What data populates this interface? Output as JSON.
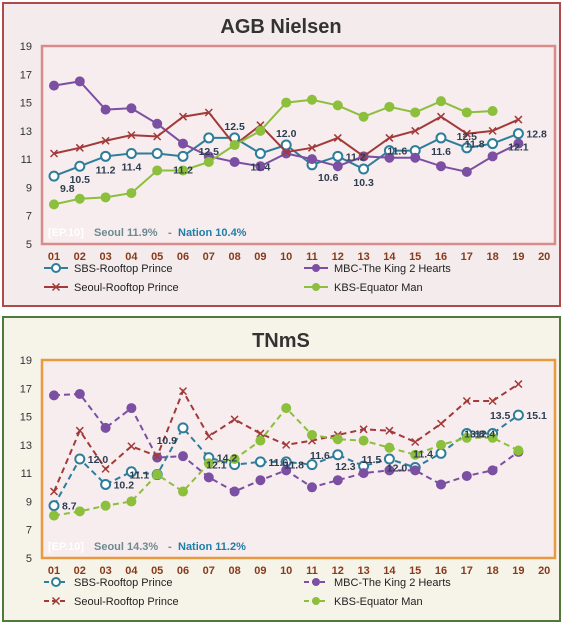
{
  "colors": {
    "sbs": "#2e7d9a",
    "mbc": "#7b4fa2",
    "seoul": "#a23a3a",
    "kbs": "#8bbf3c",
    "agb_frame": "#d98b8b",
    "tnms_frame": "#e89a40",
    "episode_tag": "#ffffff",
    "seoul_text": "#6d8a92",
    "nation_text": "#1f7fa8"
  },
  "chart_data": [
    {
      "type": "line",
      "title": "AGB Nielsen",
      "x": [
        "01",
        "02",
        "03",
        "04",
        "05",
        "06",
        "07",
        "08",
        "09",
        "10",
        "11",
        "12",
        "13",
        "14",
        "15",
        "16",
        "17",
        "18",
        "19",
        "20"
      ],
      "ylim": [
        5,
        19
      ],
      "yticks": [
        5,
        7,
        9,
        11,
        13,
        15,
        17,
        19
      ],
      "grid": false,
      "line_style": "solid",
      "legend_position": "bottom",
      "footer": {
        "episode": "[EP.10]",
        "seoul": "Seoul 11.9%",
        "separator": "-",
        "nation": "Nation 10.4%"
      },
      "series": [
        {
          "name": "SBS-Rooftop Prince",
          "key": "sbs",
          "marker": "circle-open",
          "values": [
            9.8,
            10.5,
            11.2,
            11.4,
            11.4,
            11.2,
            12.5,
            12.5,
            11.4,
            12.0,
            10.6,
            11.2,
            10.3,
            11.6,
            11.6,
            12.5,
            11.8,
            12.1,
            12.8,
            null
          ]
        },
        {
          "name": "MBC-The King 2 Hearts",
          "key": "mbc",
          "marker": "circle",
          "values": [
            16.2,
            16.5,
            14.5,
            14.6,
            13.5,
            12.1,
            11.2,
            10.8,
            10.5,
            11.4,
            11.0,
            10.5,
            11.2,
            11.1,
            11.1,
            10.5,
            10.1,
            11.2,
            12.1,
            null
          ]
        },
        {
          "name": "Seoul-Rooftop Prince",
          "key": "seoul",
          "marker": "x",
          "values": [
            11.4,
            11.8,
            12.3,
            12.7,
            12.6,
            14.0,
            14.3,
            12.0,
            13.4,
            11.5,
            11.8,
            12.5,
            11.2,
            12.5,
            13.0,
            14.0,
            12.8,
            13.0,
            13.8,
            null
          ]
        },
        {
          "name": "KBS-Equator Man",
          "key": "kbs",
          "marker": "circle",
          "values": [
            7.8,
            8.2,
            8.3,
            8.6,
            10.2,
            10.2,
            10.8,
            12.0,
            13.0,
            15.0,
            15.2,
            14.8,
            14.0,
            14.7,
            14.3,
            15.1,
            14.3,
            14.4,
            null,
            null
          ]
        }
      ],
      "data_labels": [
        {
          "series": "sbs",
          "index": 0,
          "text": "9.8",
          "pos": "below-right"
        },
        {
          "series": "sbs",
          "index": 1,
          "text": "10.5",
          "pos": "below"
        },
        {
          "series": "sbs",
          "index": 2,
          "text": "11.2",
          "pos": "below"
        },
        {
          "series": "sbs",
          "index": 3,
          "text": "11.4",
          "pos": "below"
        },
        {
          "series": "sbs",
          "index": 5,
          "text": "11.2",
          "pos": "below"
        },
        {
          "series": "sbs",
          "index": 6,
          "text": "12.5",
          "pos": "below"
        },
        {
          "series": "sbs",
          "index": 7,
          "text": "12.5",
          "pos": "above"
        },
        {
          "series": "sbs",
          "index": 8,
          "text": "11.4",
          "pos": "below"
        },
        {
          "series": "sbs",
          "index": 9,
          "text": "12.0",
          "pos": "above"
        },
        {
          "series": "sbs",
          "index": 10,
          "text": "10.6",
          "pos": "below-right"
        },
        {
          "series": "sbs",
          "index": 11,
          "text": "11.2",
          "pos": "right"
        },
        {
          "series": "sbs",
          "index": 12,
          "text": "10.3",
          "pos": "below"
        },
        {
          "series": "sbs",
          "index": 14,
          "text": "11.6",
          "pos": "left"
        },
        {
          "series": "sbs",
          "index": 15,
          "text": "11.6",
          "pos": "below"
        },
        {
          "series": "sbs",
          "index": 16,
          "text": "12.5",
          "pos": "above"
        },
        {
          "series": "sbs",
          "index": 17,
          "text": "11.8",
          "pos": "left"
        },
        {
          "series": "sbs",
          "index": 18,
          "text": "12.1",
          "pos": "below"
        },
        {
          "series": "sbs",
          "index": 18,
          "text": "12.8",
          "pos": "right"
        }
      ]
    },
    {
      "type": "line",
      "title": "TNmS",
      "x": [
        "01",
        "02",
        "03",
        "04",
        "05",
        "06",
        "07",
        "08",
        "09",
        "10",
        "11",
        "12",
        "13",
        "14",
        "15",
        "16",
        "17",
        "18",
        "19",
        "20"
      ],
      "ylim": [
        5,
        19
      ],
      "yticks": [
        5,
        7,
        9,
        11,
        13,
        15,
        17,
        19
      ],
      "grid": false,
      "line_style": "dashed",
      "legend_position": "bottom",
      "footer": {
        "episode": "[EP.10]",
        "seoul": "Seoul 14.3%",
        "separator": "-",
        "nation": "Nation 11.2%"
      },
      "series": [
        {
          "name": "SBS-Rooftop Prince",
          "key": "sbs",
          "marker": "circle-open",
          "values": [
            8.7,
            12.0,
            10.2,
            11.1,
            10.9,
            14.2,
            12.1,
            11.6,
            11.8,
            11.8,
            11.6,
            12.3,
            11.5,
            12.0,
            11.4,
            12.4,
            13.8,
            13.8,
            15.1,
            null
          ]
        },
        {
          "name": "MBC-The King 2 Hearts",
          "key": "mbc",
          "marker": "circle",
          "values": [
            16.5,
            16.6,
            14.2,
            15.6,
            12.1,
            12.2,
            10.7,
            9.7,
            10.5,
            11.2,
            10.0,
            10.5,
            11.0,
            11.2,
            11.2,
            10.2,
            10.8,
            11.2,
            12.5,
            null
          ]
        },
        {
          "name": "Seoul-Rooftop Prince",
          "key": "seoul",
          "marker": "x",
          "values": [
            9.7,
            14.0,
            11.3,
            12.9,
            12.2,
            16.8,
            13.6,
            14.8,
            13.8,
            13.0,
            13.3,
            13.7,
            14.1,
            14.0,
            13.2,
            14.5,
            16.1,
            16.1,
            17.3,
            null
          ]
        },
        {
          "name": "KBS-Equator Man",
          "key": "kbs",
          "marker": "circle",
          "values": [
            8.0,
            8.3,
            8.7,
            9.0,
            10.9,
            9.7,
            11.7,
            12.0,
            13.3,
            15.6,
            13.7,
            13.4,
            13.3,
            12.8,
            12.3,
            13.0,
            13.5,
            13.5,
            12.6,
            null
          ]
        }
      ],
      "data_labels": [
        {
          "series": "sbs",
          "index": 0,
          "text": "8.7",
          "pos": "right"
        },
        {
          "series": "sbs",
          "index": 1,
          "text": "12.0",
          "pos": "right"
        },
        {
          "series": "sbs",
          "index": 2,
          "text": "10.2",
          "pos": "right"
        },
        {
          "series": "sbs",
          "index": 4,
          "text": "11.1",
          "pos": "left"
        },
        {
          "series": "sbs",
          "index": 5,
          "text": "10.9",
          "pos": "below-left"
        },
        {
          "series": "sbs",
          "index": 6,
          "text": "14.2",
          "pos": "right"
        },
        {
          "series": "sbs",
          "index": 7,
          "text": "12.1",
          "pos": "left"
        },
        {
          "series": "sbs",
          "index": 8,
          "text": "11.6",
          "pos": "right"
        },
        {
          "series": "sbs",
          "index": 10,
          "text": "11.8",
          "pos": "left"
        },
        {
          "series": "sbs",
          "index": 11,
          "text": "11.6",
          "pos": "left"
        },
        {
          "series": "sbs",
          "index": 12,
          "text": "12.3",
          "pos": "left"
        },
        {
          "series": "sbs",
          "index": 13,
          "text": "11.5",
          "pos": "left"
        },
        {
          "series": "sbs",
          "index": 14,
          "text": "12.0",
          "pos": "left"
        },
        {
          "series": "sbs",
          "index": 15,
          "text": "11.4",
          "pos": "left"
        },
        {
          "series": "sbs",
          "index": 16,
          "text": "12.4",
          "pos": "right"
        },
        {
          "series": "sbs",
          "index": 17,
          "text": "13.8",
          "pos": "left"
        },
        {
          "series": "sbs",
          "index": 18,
          "text": "13.5",
          "pos": "left"
        },
        {
          "series": "sbs",
          "index": 18,
          "text": "15.1",
          "pos": "right"
        }
      ]
    }
  ]
}
